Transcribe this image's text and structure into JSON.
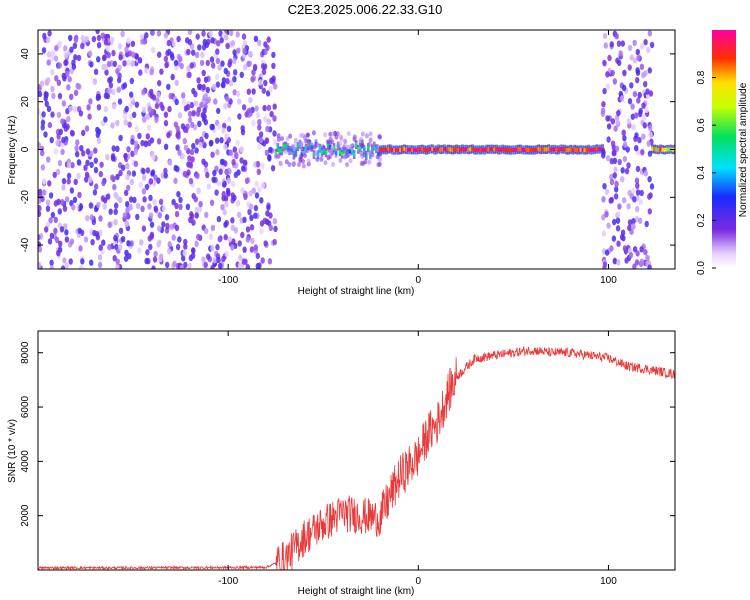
{
  "title": "C2E3.2025.006.22.33.G10",
  "colors": {
    "snr_line": "#e83a3a",
    "scatter_purple": "#7a2be0",
    "background": "#ffffff",
    "axis": "#000000"
  },
  "chart_data": [
    {
      "type": "heatmap",
      "xlabel": "Height of straight line (km)",
      "ylabel": "Frequency (Hz)",
      "xlim": [
        -200,
        135
      ],
      "ylim": [
        -50,
        50
      ],
      "x_ticks": [
        -100,
        0,
        100
      ],
      "y_ticks": [
        -40,
        -20,
        0,
        20,
        40
      ],
      "colorbar": {
        "label": "Normalized spectral amplitude",
        "range": [
          0,
          1
        ],
        "ticks": [
          "0.0",
          "0.2",
          "0.4",
          "0.6",
          "0.8"
        ],
        "colormap": "rainbow (white to purple, blue, cyan, green, yellow, red, magenta)"
      },
      "regions": [
        {
          "x_from": -200,
          "x_to": -75,
          "pattern": "broadband noise",
          "freq_range": [
            -50,
            50
          ],
          "amplitude": [
            0.05,
            0.25
          ]
        },
        {
          "x_from": -75,
          "x_to": -20,
          "pattern": "noisy tone",
          "freq_center": 0,
          "freq_spread": 5,
          "amplitude": [
            0.3,
            0.6
          ]
        },
        {
          "x_from": -20,
          "x_to": 97,
          "pattern": "clean tone",
          "freq_center": 0,
          "amplitude": [
            0.8,
            1.0
          ]
        },
        {
          "x_from": 97,
          "x_to": 123,
          "pattern": "broadband noise",
          "freq_range": [
            -50,
            50
          ],
          "amplitude": [
            0.05,
            0.25
          ]
        },
        {
          "x_from": 123,
          "x_to": 135,
          "pattern": "tone",
          "freq_center": 0,
          "amplitude": [
            0.6,
            0.9
          ]
        }
      ]
    },
    {
      "type": "line",
      "xlabel": "Height of straight line (km)",
      "ylabel": "SNR (10 * v/v)",
      "xlim": [
        -200,
        135
      ],
      "ylim": [
        0,
        8800
      ],
      "x_ticks": [
        -100,
        0,
        100
      ],
      "y_ticks": [
        2000,
        4000,
        6000,
        8000
      ],
      "series": [
        {
          "x": [
            -200,
            -150,
            -100,
            -80,
            -70,
            -60,
            -50,
            -40,
            -30,
            -20,
            -15,
            -10,
            -5,
            0,
            5,
            10,
            15,
            20,
            30,
            40,
            50,
            60,
            70,
            80,
            90,
            100,
            110,
            120,
            135
          ],
          "y": [
            80,
            80,
            90,
            100,
            400,
            1200,
            1700,
            2100,
            2000,
            1900,
            2700,
            3400,
            3800,
            4200,
            5000,
            5400,
            6400,
            7100,
            7800,
            7900,
            8000,
            8100,
            8000,
            8000,
            7900,
            7800,
            7500,
            7400,
            7200
          ]
        }
      ]
    }
  ]
}
